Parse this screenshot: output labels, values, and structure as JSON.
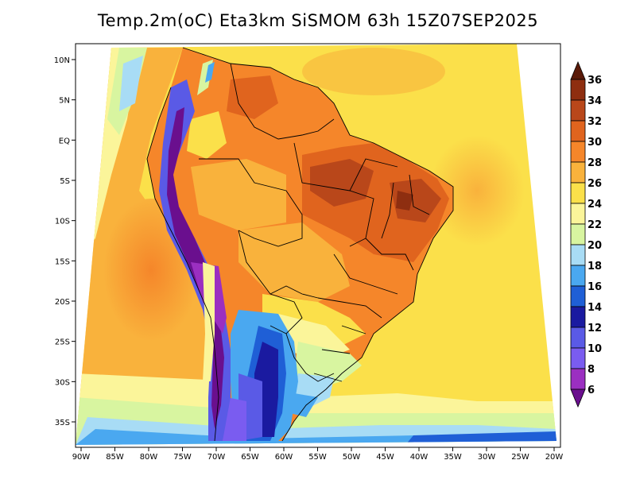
{
  "title": "Temp.2m(oC) Eta3km SiSMOM 63h 15Z07SEP2025",
  "map": {
    "lon_labels": [
      "90W",
      "85W",
      "80W",
      "75W",
      "70W",
      "65W",
      "60W",
      "55W",
      "50W",
      "45W",
      "40W",
      "35W",
      "30W",
      "25W",
      "20W"
    ],
    "lat_labels": [
      "10N",
      "5N",
      "EQ",
      "5S",
      "10S",
      "15S",
      "20S",
      "25S",
      "30S",
      "35S"
    ]
  },
  "colorbar": {
    "levels": [
      "6",
      "8",
      "10",
      "12",
      "14",
      "16",
      "18",
      "20",
      "22",
      "24",
      "26",
      "28",
      "30",
      "32",
      "34",
      "36"
    ],
    "colors": [
      "#6a0f8e",
      "#9b2fc1",
      "#7a5cf0",
      "#5a5ae6",
      "#1a1aa0",
      "#1f5fd6",
      "#4aa8f0",
      "#a8dcf5",
      "#d8f5a0",
      "#fbf59a",
      "#fbe04a",
      "#f9b23c",
      "#f5862a",
      "#e0641e",
      "#b9471a",
      "#8e2e10",
      "#5a1a08"
    ],
    "min_arrow_color": "#6a0f8e",
    "max_arrow_color": "#5a1a08"
  }
}
